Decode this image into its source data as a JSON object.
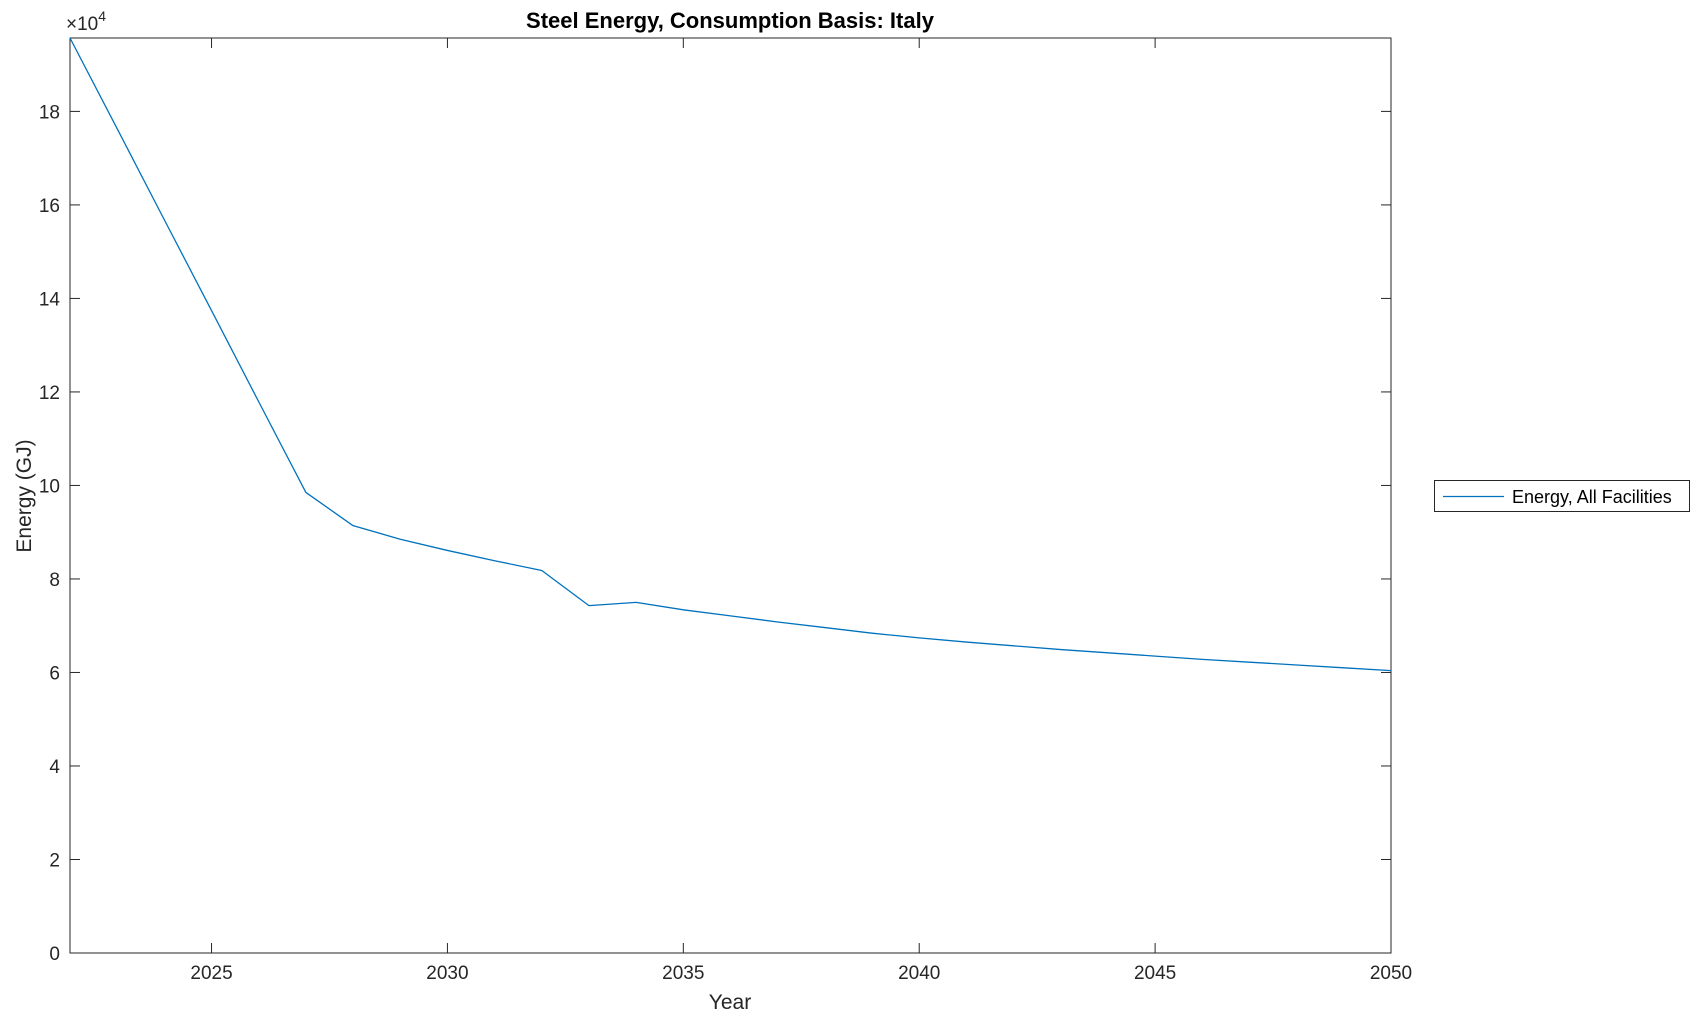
{
  "chart_data": {
    "type": "line",
    "title": "Steel Energy, Consumption Basis: Italy",
    "xlabel": "Year",
    "ylabel": "Energy (GJ)",
    "y_multiplier": {
      "base": "×10",
      "exp": "4"
    },
    "xlim": [
      2022,
      2050
    ],
    "ylim": [
      0,
      195700
    ],
    "xticks": [
      2025,
      2030,
      2035,
      2040,
      2045,
      2050
    ],
    "yticks": [
      0,
      2,
      4,
      6,
      8,
      10,
      12,
      14,
      16,
      18
    ],
    "y_tick_scale": 10000,
    "grid": false,
    "axis_color": "#262626",
    "background_color": "#ffffff",
    "legend": {
      "position": "right-outside",
      "entries": [
        {
          "label": "Energy, All Facilities",
          "color": "#0072BD"
        }
      ]
    },
    "series": [
      {
        "name": "Energy, All Facilities",
        "color": "#0072BD",
        "x": [
          2022,
          2023,
          2024,
          2025,
          2026,
          2027,
          2028,
          2029,
          2030,
          2031,
          2032,
          2033,
          2034,
          2035,
          2036,
          2037,
          2038,
          2039,
          2040,
          2041,
          2042,
          2043,
          2044,
          2045,
          2046,
          2047,
          2048,
          2049,
          2050
        ],
        "y": [
          195700,
          176300,
          156800,
          137400,
          117900,
          98500,
          91400,
          88500,
          86100,
          83900,
          81800,
          74300,
          75000,
          73400,
          72100,
          70800,
          69600,
          68400,
          67400,
          66500,
          65700,
          64900,
          64200,
          63500,
          62800,
          62200,
          61600,
          61000,
          60400
        ]
      }
    ]
  }
}
